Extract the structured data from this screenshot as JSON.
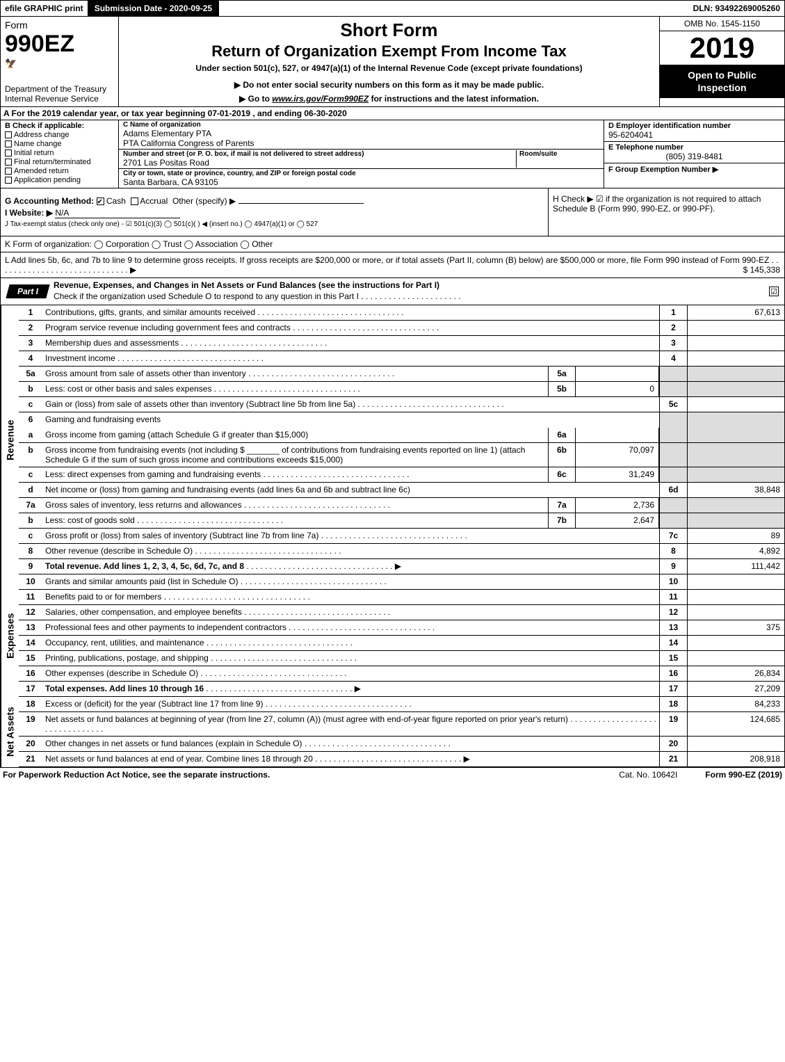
{
  "topbar": {
    "efile": "efile GRAPHIC print",
    "submission": "Submission Date - 2020-09-25",
    "dln": "DLN: 93492269005260"
  },
  "header": {
    "form_word": "Form",
    "form_number": "990EZ",
    "dept": "Department of the Treasury",
    "irs": "Internal Revenue Service",
    "short_form": "Short Form",
    "return_title": "Return of Organization Exempt From Income Tax",
    "under": "Under section 501(c), 527, or 4947(a)(1) of the Internal Revenue Code (except private foundations)",
    "donot": "▶ Do not enter social security numbers on this form as it may be made public.",
    "goto_prefix": "▶ Go to ",
    "goto_link": "www.irs.gov/Form990EZ",
    "goto_suffix": " for instructions and the latest information.",
    "omb": "OMB No. 1545-1150",
    "year": "2019",
    "open": "Open to Public Inspection"
  },
  "row_a": "A For the 2019 calendar year, or tax year beginning 07-01-2019 , and ending 06-30-2020",
  "col_b": {
    "title": "B Check if applicable:",
    "items": [
      "Address change",
      "Name change",
      "Initial return",
      "Final return/terminated",
      "Amended return",
      "Application pending"
    ]
  },
  "col_c": {
    "name_label": "C Name of organization",
    "name1": "Adams Elementary PTA",
    "name2": "PTA California Congress of Parents",
    "street_label": "Number and street (or P. O. box, if mail is not delivered to street address)",
    "room_label": "Room/suite",
    "street": "2701 Las Positas Road",
    "city_label": "City or town, state or province, country, and ZIP or foreign postal code",
    "city": "Santa Barbara, CA  93105"
  },
  "col_d": {
    "ein_label": "D Employer identification number",
    "ein": "95-6204041",
    "phone_label": "E Telephone number",
    "phone": "(805) 319-8481",
    "group_label": "F Group Exemption Number  ▶"
  },
  "col_g": {
    "accounting": "G Accounting Method:",
    "cash": "Cash",
    "accrual": "Accrual",
    "other": "Other (specify) ▶",
    "website_label": "I Website: ▶",
    "website": "N/A",
    "tax_exempt": "J Tax-exempt status (check only one) -  ☑ 501(c)(3)  ◯ 501(c)(  ) ◀ (insert no.)  ◯ 4947(a)(1) or  ◯ 527"
  },
  "col_h": {
    "check_label": "H  Check ▶  ☑  if the organization is not required to attach Schedule B (Form 990, 990-EZ, or 990-PF)."
  },
  "row_k": "K Form of organization:   ◯ Corporation   ◯ Trust   ◯ Association   ◯ Other",
  "row_l": {
    "text": "L Add lines 5b, 6c, and 7b to line 9 to determine gross receipts. If gross receipts are $200,000 or more, or if total assets (Part II, column (B) below) are $500,000 or more, file Form 990 instead of Form 990-EZ  .  .  .  .  .  .  .  .  .  .  .  .  .  .  .  .  .  .  .  .  .  .  .  .  .  .  .  .  .  ▶",
    "amount": "$ 145,338"
  },
  "part1": {
    "tab": "Part I",
    "title": "Revenue, Expenses, and Changes in Net Assets or Fund Balances (see the instructions for Part I)",
    "sub": "Check if the organization used Schedule O to respond to any question in this Part I .  .  .  .  .  .  .  .  .  .  .  .  .  .  .  .  .  .  .  .  .  .",
    "check": "☑"
  },
  "sections": {
    "revenue_label": "Revenue",
    "expenses_label": "Expenses",
    "netassets_label": "Net Assets"
  },
  "lines": {
    "l1": {
      "num": "1",
      "desc": "Contributions, gifts, grants, and similar amounts received",
      "r": "1",
      "val": "67,613"
    },
    "l2": {
      "num": "2",
      "desc": "Program service revenue including government fees and contracts",
      "r": "2",
      "val": ""
    },
    "l3": {
      "num": "3",
      "desc": "Membership dues and assessments",
      "r": "3",
      "val": ""
    },
    "l4": {
      "num": "4",
      "desc": "Investment income",
      "r": "4",
      "val": ""
    },
    "l5a": {
      "num": "5a",
      "desc": "Gross amount from sale of assets other than inventory",
      "m": "5a",
      "mval": ""
    },
    "l5b": {
      "num": "b",
      "desc": "Less: cost or other basis and sales expenses",
      "m": "5b",
      "mval": "0"
    },
    "l5c": {
      "num": "c",
      "desc": "Gain or (loss) from sale of assets other than inventory (Subtract line 5b from line 5a)",
      "r": "5c",
      "val": ""
    },
    "l6": {
      "num": "6",
      "desc": "Gaming and fundraising events"
    },
    "l6a": {
      "num": "a",
      "desc": "Gross income from gaming (attach Schedule G if greater than $15,000)",
      "m": "6a",
      "mval": ""
    },
    "l6b": {
      "num": "b",
      "desc": "Gross income from fundraising events (not including $ _______ of contributions from fundraising events reported on line 1) (attach Schedule G if the sum of such gross income and contributions exceeds $15,000)",
      "m": "6b",
      "mval": "70,097"
    },
    "l6c": {
      "num": "c",
      "desc": "Less: direct expenses from gaming and fundraising events",
      "m": "6c",
      "mval": "31,249"
    },
    "l6d": {
      "num": "d",
      "desc": "Net income or (loss) from gaming and fundraising events (add lines 6a and 6b and subtract line 6c)",
      "r": "6d",
      "val": "38,848"
    },
    "l7a": {
      "num": "7a",
      "desc": "Gross sales of inventory, less returns and allowances",
      "m": "7a",
      "mval": "2,736"
    },
    "l7b": {
      "num": "b",
      "desc": "Less: cost of goods sold",
      "m": "7b",
      "mval": "2,647"
    },
    "l7c": {
      "num": "c",
      "desc": "Gross profit or (loss) from sales of inventory (Subtract line 7b from line 7a)",
      "r": "7c",
      "val": "89"
    },
    "l8": {
      "num": "8",
      "desc": "Other revenue (describe in Schedule O)",
      "r": "8",
      "val": "4,892"
    },
    "l9": {
      "num": "9",
      "desc": "Total revenue. Add lines 1, 2, 3, 4, 5c, 6d, 7c, and 8",
      "r": "9",
      "val": "111,442",
      "bold": true,
      "arrow": true
    },
    "l10": {
      "num": "10",
      "desc": "Grants and similar amounts paid (list in Schedule O)",
      "r": "10",
      "val": ""
    },
    "l11": {
      "num": "11",
      "desc": "Benefits paid to or for members",
      "r": "11",
      "val": ""
    },
    "l12": {
      "num": "12",
      "desc": "Salaries, other compensation, and employee benefits",
      "r": "12",
      "val": ""
    },
    "l13": {
      "num": "13",
      "desc": "Professional fees and other payments to independent contractors",
      "r": "13",
      "val": "375"
    },
    "l14": {
      "num": "14",
      "desc": "Occupancy, rent, utilities, and maintenance",
      "r": "14",
      "val": ""
    },
    "l15": {
      "num": "15",
      "desc": "Printing, publications, postage, and shipping",
      "r": "15",
      "val": ""
    },
    "l16": {
      "num": "16",
      "desc": "Other expenses (describe in Schedule O)",
      "r": "16",
      "val": "26,834"
    },
    "l17": {
      "num": "17",
      "desc": "Total expenses. Add lines 10 through 16",
      "r": "17",
      "val": "27,209",
      "bold": true,
      "arrow": true
    },
    "l18": {
      "num": "18",
      "desc": "Excess or (deficit) for the year (Subtract line 17 from line 9)",
      "r": "18",
      "val": "84,233"
    },
    "l19": {
      "num": "19",
      "desc": "Net assets or fund balances at beginning of year (from line 27, column (A)) (must agree with end-of-year figure reported on prior year's return)",
      "r": "19",
      "val": "124,685"
    },
    "l20": {
      "num": "20",
      "desc": "Other changes in net assets or fund balances (explain in Schedule O)",
      "r": "20",
      "val": ""
    },
    "l21": {
      "num": "21",
      "desc": "Net assets or fund balances at end of year. Combine lines 18 through 20",
      "r": "21",
      "val": "208,918",
      "arrow": true
    }
  },
  "footer": {
    "left": "For Paperwork Reduction Act Notice, see the separate instructions.",
    "mid": "Cat. No. 10642I",
    "right": "Form 990-EZ (2019)"
  },
  "colors": {
    "black": "#000000",
    "white": "#ffffff",
    "shade": "#dddddd"
  }
}
